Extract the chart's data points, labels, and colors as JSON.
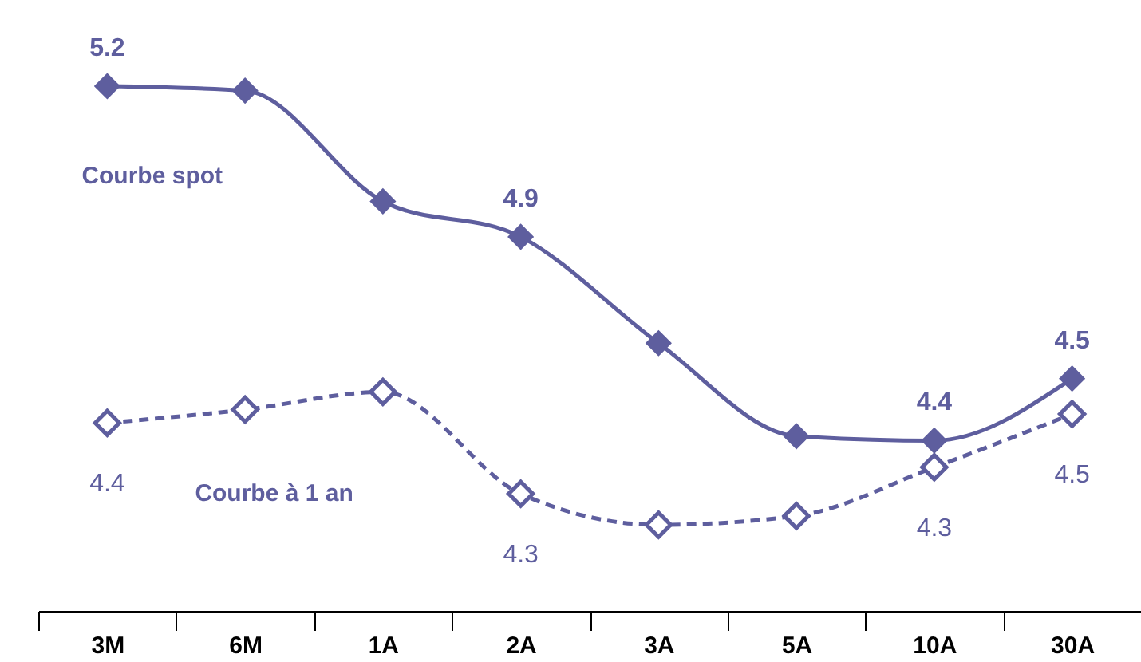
{
  "chart_data": {
    "type": "line",
    "categories": [
      "3M",
      "6M",
      "1A",
      "2A",
      "3A",
      "5A",
      "10A",
      "30A"
    ],
    "series": [
      {
        "name": "Courbe spot",
        "color": "#5e5e9e",
        "line_style": "solid",
        "marker": "diamond",
        "values": [
          5.2,
          5.19,
          4.94,
          4.86,
          4.62,
          4.41,
          4.4,
          4.54
        ],
        "value_labels": [
          "5.2",
          null,
          null,
          "4.9",
          null,
          null,
          "4.4",
          "4.5"
        ]
      },
      {
        "name": "Courbe à 1 an",
        "color": "#5e5e9e",
        "line_style": "dashed",
        "marker": "diamond",
        "values": [
          4.44,
          4.47,
          4.51,
          4.28,
          4.21,
          4.23,
          4.34,
          4.46
        ],
        "value_labels": [
          "4.4",
          null,
          null,
          "4.3",
          null,
          null,
          "4.3",
          "4.5"
        ]
      }
    ],
    "grid": false,
    "legend": false,
    "tick_labels": "x"
  }
}
